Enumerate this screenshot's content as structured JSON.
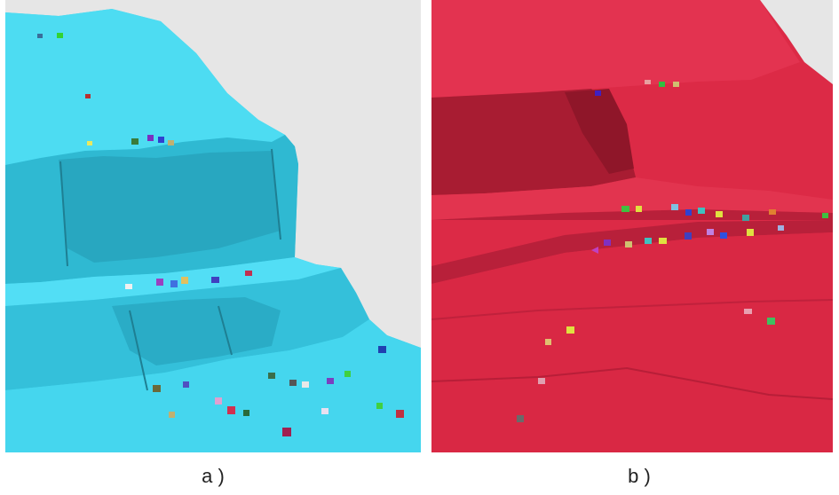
{
  "captions": {
    "a": "a )",
    "b": "b )"
  },
  "panels": {
    "a": {
      "terrain_color": "#3fd2ec",
      "background": "#e6e6e6"
    },
    "b": {
      "terrain_color": "#dc2845",
      "background": "#e6e6e6"
    }
  }
}
